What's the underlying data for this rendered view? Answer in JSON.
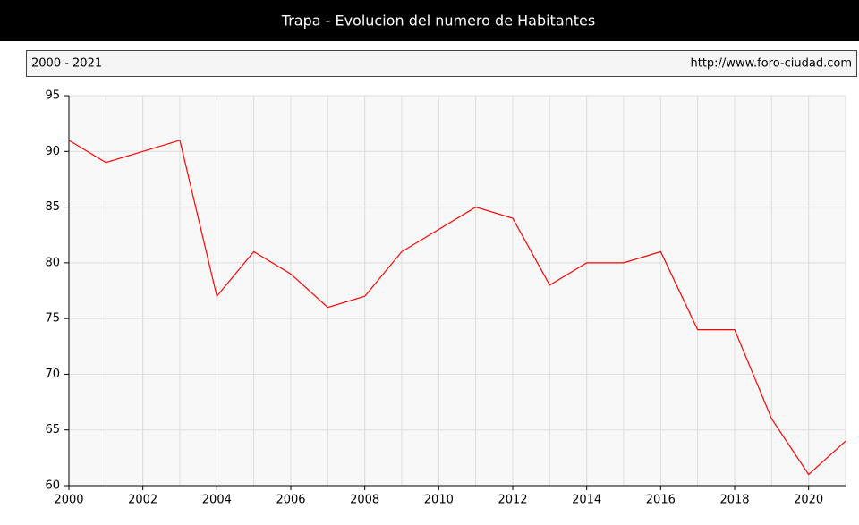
{
  "chart_data": {
    "type": "line",
    "title": "Trapa - Evolucion del numero de Habitantes",
    "subtitle": "2000 - 2021",
    "source": "http://www.foro-ciudad.com",
    "x": [
      2000,
      2001,
      2002,
      2003,
      2004,
      2005,
      2006,
      2007,
      2008,
      2009,
      2010,
      2011,
      2012,
      2013,
      2014,
      2015,
      2016,
      2017,
      2018,
      2019,
      2020,
      2021
    ],
    "series": [
      {
        "name": "Habitantes",
        "color": "#ff0000",
        "values": [
          91,
          89,
          90,
          91,
          77,
          81,
          79,
          76,
          77,
          81,
          83,
          85,
          84,
          78,
          80,
          80,
          81,
          74,
          74,
          66,
          61,
          64
        ]
      }
    ],
    "xlim": [
      2000,
      2021
    ],
    "xticks": [
      2000,
      2002,
      2004,
      2006,
      2008,
      2010,
      2012,
      2014,
      2016,
      2018,
      2020
    ],
    "ylim": [
      60,
      95
    ],
    "yticks": [
      60,
      65,
      70,
      75,
      80,
      85,
      90,
      95
    ],
    "grid": true
  }
}
